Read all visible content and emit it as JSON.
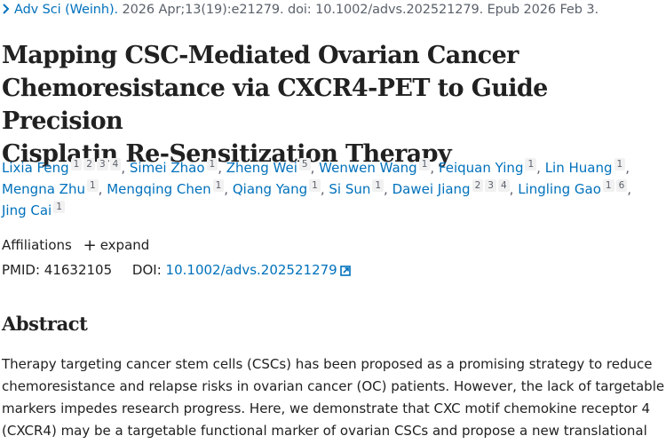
{
  "citation": {
    "chevron_icon": "chevron-right-icon",
    "journal": "Adv Sci (Weinh).",
    "details": " 2026 Apr;13(19):e21279. doi: 10.1002/advs.202521279. Epub 2026 Feb 3."
  },
  "title": {
    "line1": "Mapping CSC-Mediated Ovarian Cancer",
    "line2": "Chemoresistance via CXCR4-PET to Guide Precision",
    "line3": "Cisplatin Re-Sensitization Therapy"
  },
  "authors": [
    {
      "name": "Lixia Feng",
      "affiliations": [
        "1",
        "2",
        "3",
        "4"
      ]
    },
    {
      "name": "Simei Zhao",
      "affiliations": [
        "1"
      ]
    },
    {
      "name": "Zheng Wei",
      "affiliations": [
        "5"
      ]
    },
    {
      "name": "Wenwen Wang",
      "affiliations": [
        "1"
      ]
    },
    {
      "name": "Feiquan Ying",
      "affiliations": [
        "1"
      ]
    },
    {
      "name": "Lin Huang",
      "affiliations": [
        "1"
      ]
    },
    {
      "name": "Mengna Zhu",
      "affiliations": [
        "1"
      ]
    },
    {
      "name": "Mengqing Chen",
      "affiliations": [
        "1"
      ]
    },
    {
      "name": "Qiang Yang",
      "affiliations": [
        "1"
      ]
    },
    {
      "name": "Si Sun",
      "affiliations": [
        "1"
      ]
    },
    {
      "name": "Dawei Jiang",
      "affiliations": [
        "2",
        "3",
        "4"
      ]
    },
    {
      "name": "Lingling Gao",
      "affiliations": [
        "1",
        "6"
      ]
    },
    {
      "name": "Jing Cai",
      "affiliations": [
        "1"
      ]
    }
  ],
  "affiliations": {
    "label": "Affiliations",
    "expand_icon": "plus-icon",
    "expand_label": "expand"
  },
  "ids": {
    "pmid_label": "PMID: 41632105",
    "doi_label": "DOI:",
    "doi_value": "10.1002/advs.202521279",
    "external_icon": "external-link-icon"
  },
  "abstract": {
    "heading": "Abstract",
    "lines": [
      "Therapy targeting cancer stem cells (CSCs) has been proposed as a promising strategy to reduce",
      "chemoresistance and relapse risks in ovarian cancer (OC) patients. However, the lack of targetable",
      "markers impedes research progress. Here, we demonstrate that CXC motif chemokine receptor 4",
      "(CXCR4) may be a targetable functional marker of ovarian CSCs and propose a new translational"
    ]
  },
  "colors": {
    "link": "#0071bc",
    "text": "#212121",
    "muted": "#5b616b",
    "sup_bg": "#f1f1f1"
  }
}
